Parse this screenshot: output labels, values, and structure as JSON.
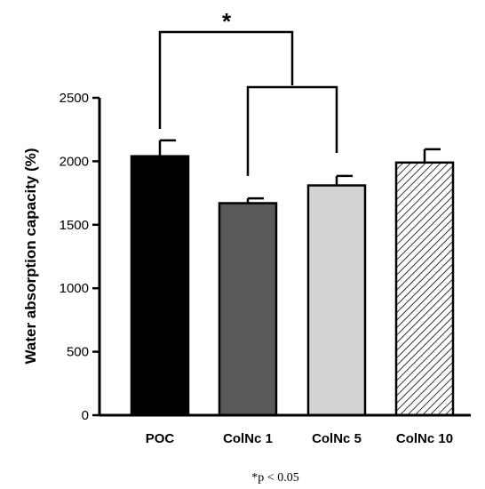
{
  "chart_data": {
    "type": "bar",
    "ylabel": "Water absorption capacity (%)",
    "xlabel": "",
    "ylim": [
      0,
      2500
    ],
    "yticks": [
      0,
      500,
      1000,
      1500,
      2000,
      2500
    ],
    "categories": [
      "POC",
      "ColNc 1",
      "ColNc 5",
      "ColNc 10"
    ],
    "values": [
      2040,
      1670,
      1810,
      1990
    ],
    "errors": [
      125,
      38,
      75,
      105
    ],
    "bar_fills": [
      "#000000",
      "#595959",
      "#d3d3d3",
      "hatch"
    ],
    "significance": {
      "marker": "*",
      "comparison": "POC vs ColNc 1 and ColNc 5",
      "footnote": "*p < 0.05"
    },
    "grid": false
  }
}
